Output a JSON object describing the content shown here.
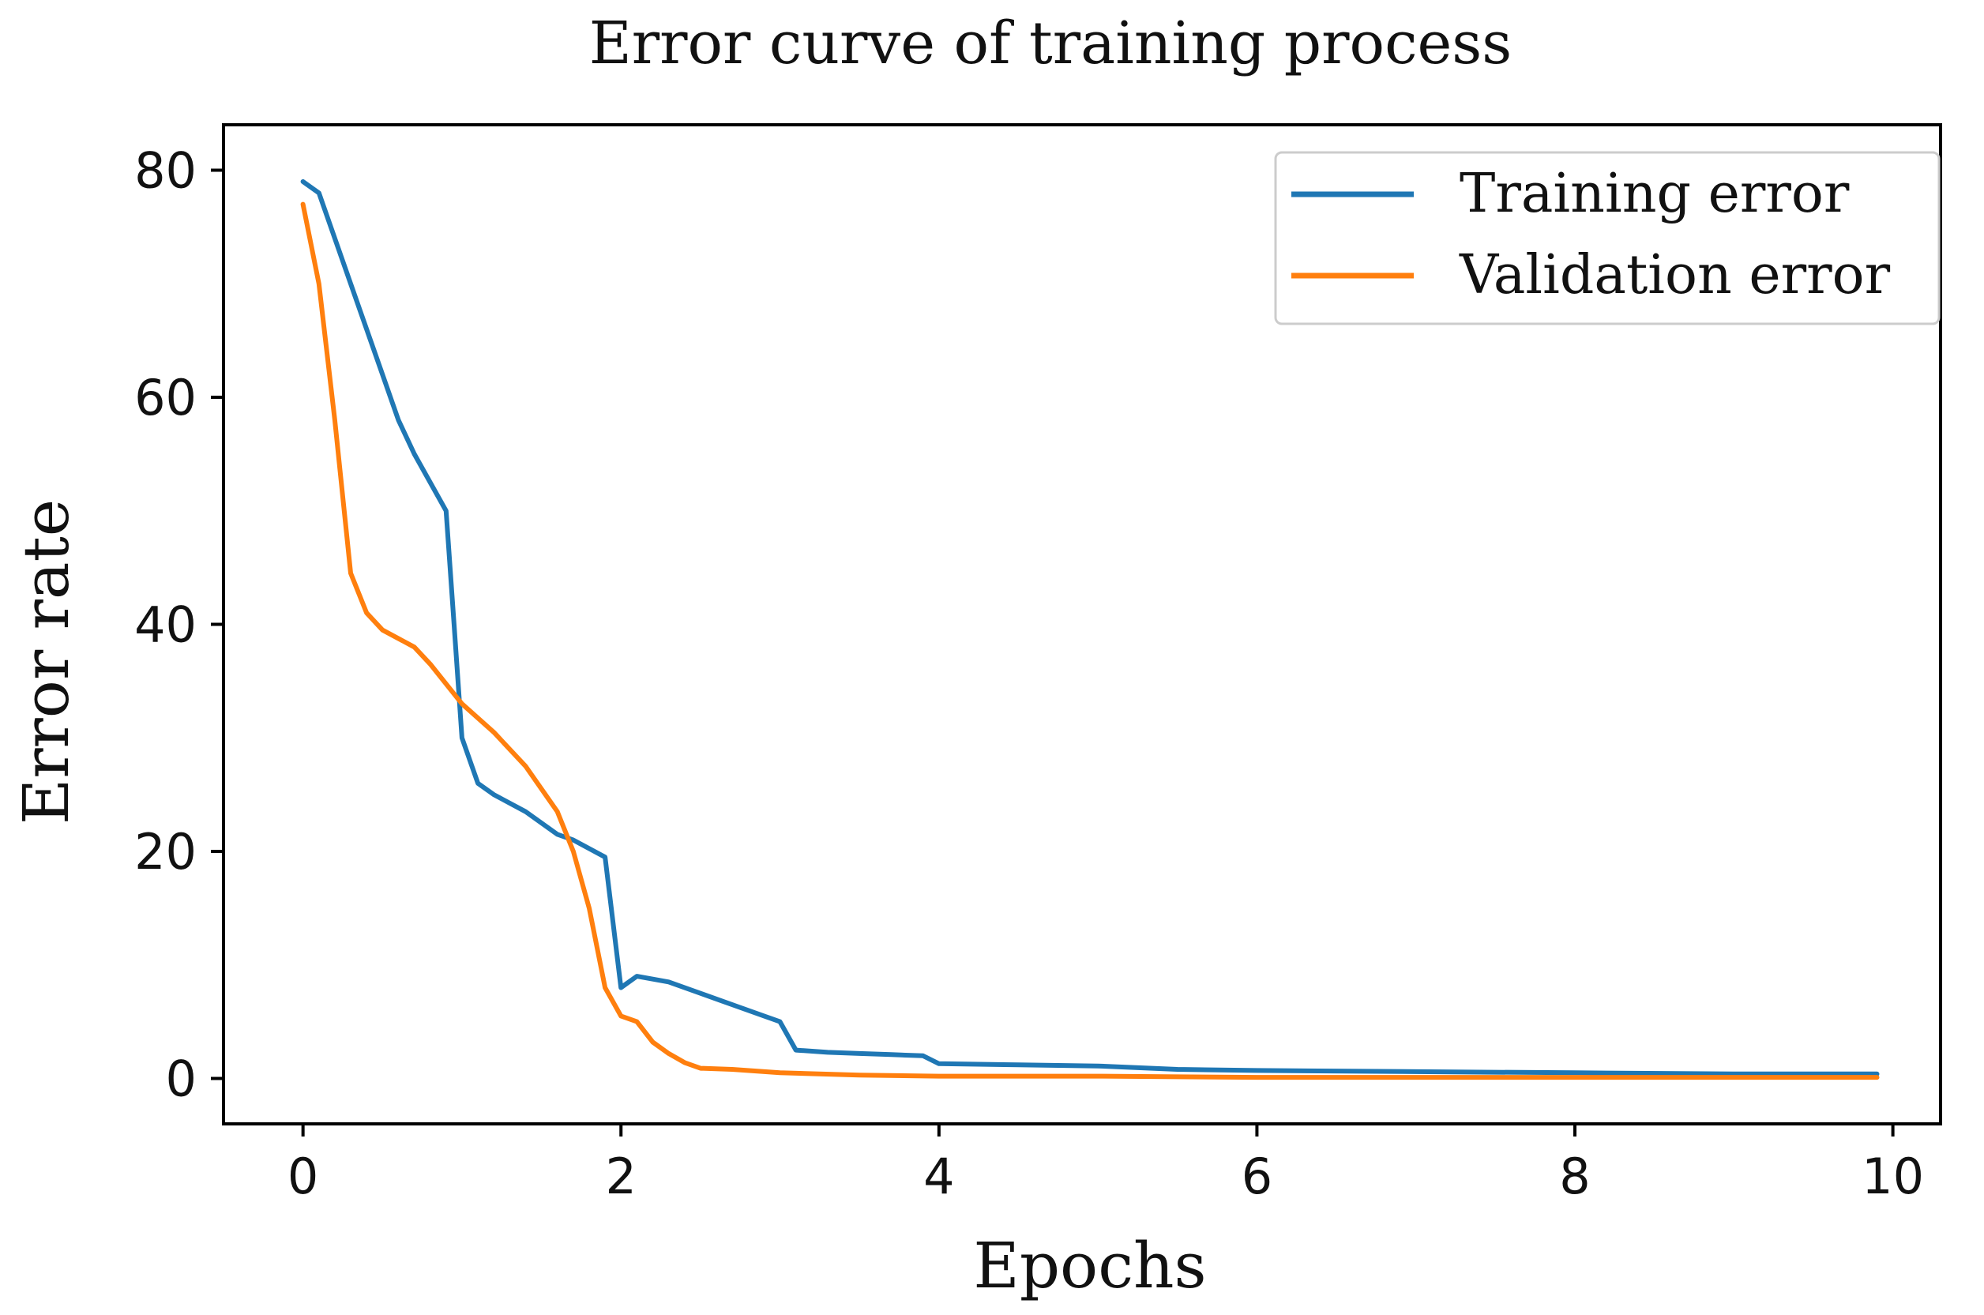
{
  "chart_data": {
    "type": "line",
    "title": "Error curve of training process",
    "xlabel": "Epochs",
    "ylabel": "Error rate",
    "xlim": [
      -0.5,
      10.3
    ],
    "ylim": [
      -4,
      84
    ],
    "xticks": [
      0,
      2,
      4,
      6,
      8,
      10
    ],
    "yticks": [
      0,
      20,
      40,
      60,
      80
    ],
    "grid": false,
    "legend_position": "top-right",
    "series": [
      {
        "name": "Training error",
        "color": "#1f77b4",
        "x": [
          0,
          0.1,
          0.3,
          0.5,
          0.6,
          0.7,
          0.9,
          0.95,
          1.0,
          1.1,
          1.2,
          1.4,
          1.6,
          1.7,
          1.9,
          2.0,
          2.1,
          2.3,
          2.5,
          2.7,
          2.9,
          3.0,
          3.1,
          3.3,
          3.5,
          3.7,
          3.9,
          4.0,
          4.5,
          5.0,
          5.5,
          6.0,
          7.0,
          8.0,
          9.0,
          9.9
        ],
        "y": [
          79,
          78,
          70,
          62,
          58,
          55,
          50,
          40,
          30,
          26,
          25,
          23.5,
          21.5,
          21,
          19.5,
          8,
          9,
          8.5,
          7.5,
          6.5,
          5.5,
          5,
          2.5,
          2.3,
          2.2,
          2.1,
          2.0,
          1.3,
          1.2,
          1.1,
          0.8,
          0.7,
          0.6,
          0.5,
          0.4,
          0.4
        ]
      },
      {
        "name": "Validation error",
        "color": "#ff7f0e",
        "x": [
          0,
          0.1,
          0.2,
          0.3,
          0.4,
          0.5,
          0.7,
          0.8,
          1.0,
          1.2,
          1.4,
          1.6,
          1.7,
          1.8,
          1.9,
          2.0,
          2.1,
          2.2,
          2.3,
          2.4,
          2.5,
          2.7,
          3.0,
          3.5,
          4.0,
          5.0,
          6.0,
          7.0,
          8.0,
          9.0,
          9.9
        ],
        "y": [
          77,
          70,
          58,
          44.5,
          41,
          39.5,
          38,
          36.5,
          33,
          30.5,
          27.5,
          23.5,
          20,
          15,
          8,
          5.5,
          5,
          3.2,
          2.2,
          1.4,
          0.9,
          0.8,
          0.5,
          0.3,
          0.2,
          0.2,
          0.1,
          0.1,
          0.1,
          0.1,
          0.1
        ]
      }
    ]
  }
}
